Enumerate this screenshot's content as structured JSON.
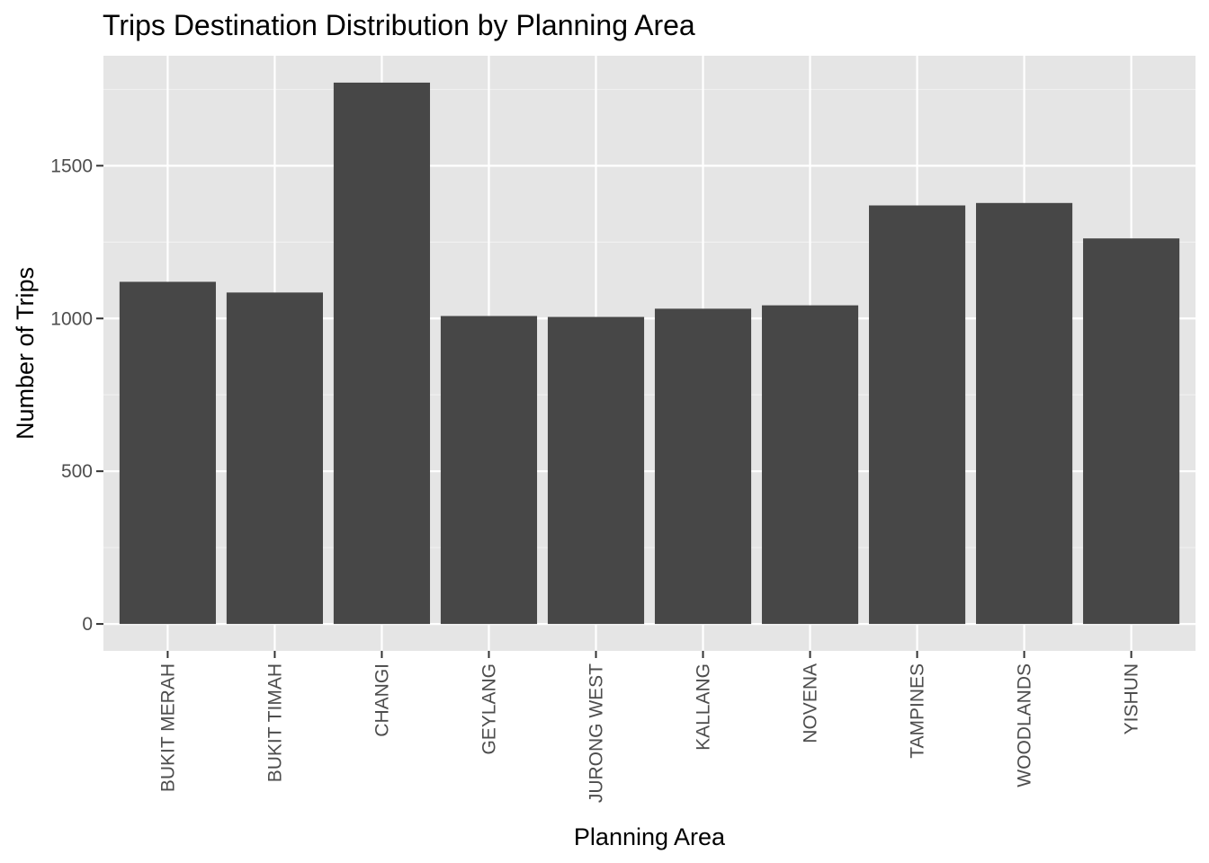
{
  "chart_data": {
    "type": "bar",
    "title": "Trips Destination Distribution by Planning Area",
    "xlabel": "Planning Area",
    "ylabel": "Number of Trips",
    "categories": [
      "BUKIT MERAH",
      "BUKIT TIMAH",
      "CHANGI",
      "GEYLANG",
      "JURONG WEST",
      "KALLANG",
      "NOVENA",
      "TAMPINES",
      "WOODLANDS",
      "YISHUN"
    ],
    "values": [
      1120,
      1085,
      1772,
      1008,
      1005,
      1032,
      1043,
      1370,
      1378,
      1262
    ],
    "yticks": [
      0,
      500,
      1000,
      1500
    ],
    "ytick_labels": [
      "0",
      "500",
      "1000",
      "1500"
    ],
    "ylim": [
      -88,
      1860
    ],
    "grid": true,
    "legend": "none",
    "colors": {
      "panel_background": "#e5e5e5",
      "grid_major": "#ffffff",
      "grid_minor": "#f2f2f2",
      "bar_fill": "#474747",
      "tick_mark": "#333333",
      "tick_text": "#4d4d4d",
      "text": "#000000"
    }
  }
}
